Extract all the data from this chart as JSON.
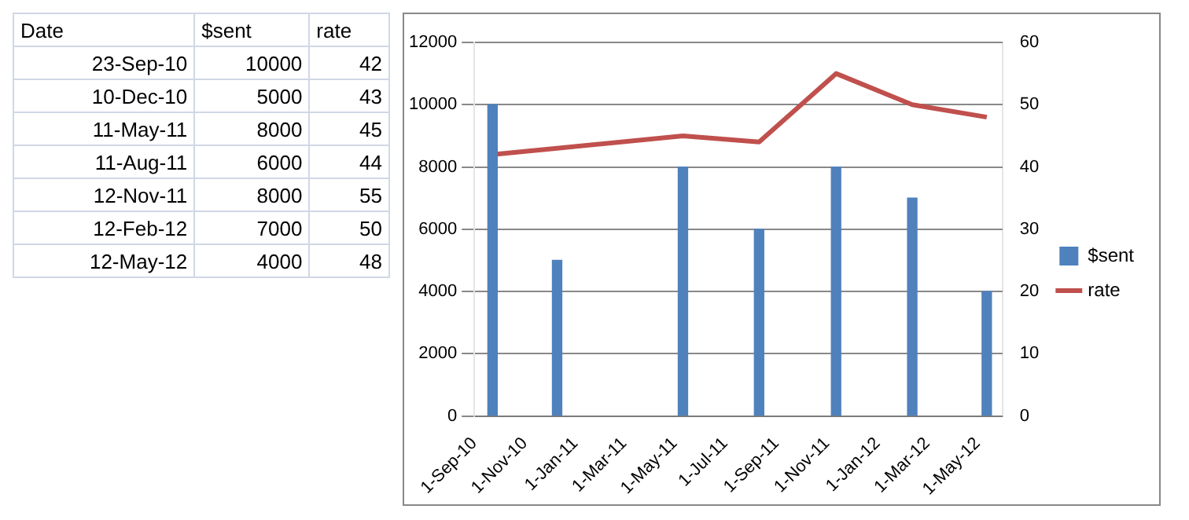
{
  "chart_data": [
    {
      "type": "other",
      "annotations": [
        "Date",
        "$sent",
        "rate",
        "23-Sep-10",
        "10000",
        "42",
        "10-Dec-10",
        "5000",
        "43",
        "11-May-11",
        "8000",
        "45",
        "11-Aug-11",
        "6000",
        "44",
        "12-Nov-11",
        "8000",
        "55",
        "12-Feb-12",
        "7000",
        "50",
        "12-May-12",
        "4000",
        "48"
      ]
    },
    {
      "type": "bar",
      "x": [
        "2010-09-23",
        "2010-12-10",
        "2011-05-11",
        "2011-08-11",
        "2011-11-12",
        "2012-02-12",
        "2012-05-12"
      ],
      "series": [
        {
          "name": "$sent",
          "type": "bar",
          "color": "#4f81bd",
          "values": [
            10000,
            5000,
            8000,
            6000,
            8000,
            7000,
            4000
          ]
        },
        {
          "name": "rate",
          "type": "line",
          "axis": "y2",
          "color": "#c0504d",
          "values": [
            42,
            43,
            45,
            44,
            55,
            50,
            48
          ]
        }
      ],
      "xlim": [
        "2010-09-01",
        "2012-05-31"
      ],
      "xticks": [
        {
          "value": "2010-09-01",
          "label": "1-Sep-10"
        },
        {
          "value": "2010-11-01",
          "label": "1-Nov-10"
        },
        {
          "value": "2011-01-01",
          "label": "1-Jan-11"
        },
        {
          "value": "2011-03-01",
          "label": "1-Mar-11"
        },
        {
          "value": "2011-05-01",
          "label": "1-May-11"
        },
        {
          "value": "2011-07-01",
          "label": "1-Jul-11"
        },
        {
          "value": "2011-09-01",
          "label": "1-Sep-11"
        },
        {
          "value": "2011-11-01",
          "label": "1-Nov-11"
        },
        {
          "value": "2012-01-01",
          "label": "1-Jan-12"
        },
        {
          "value": "2012-03-01",
          "label": "1-Mar-12"
        },
        {
          "value": "2012-05-01",
          "label": "1-May-12"
        }
      ],
      "ylim": [
        0,
        12000
      ],
      "yticks": [
        0,
        2000,
        4000,
        6000,
        8000,
        10000,
        12000
      ],
      "y2lim": [
        0,
        60
      ],
      "y2ticks": [
        0,
        10,
        20,
        30,
        40,
        50,
        60
      ],
      "grid": "y",
      "legend": "right",
      "line_style": "solid"
    }
  ]
}
